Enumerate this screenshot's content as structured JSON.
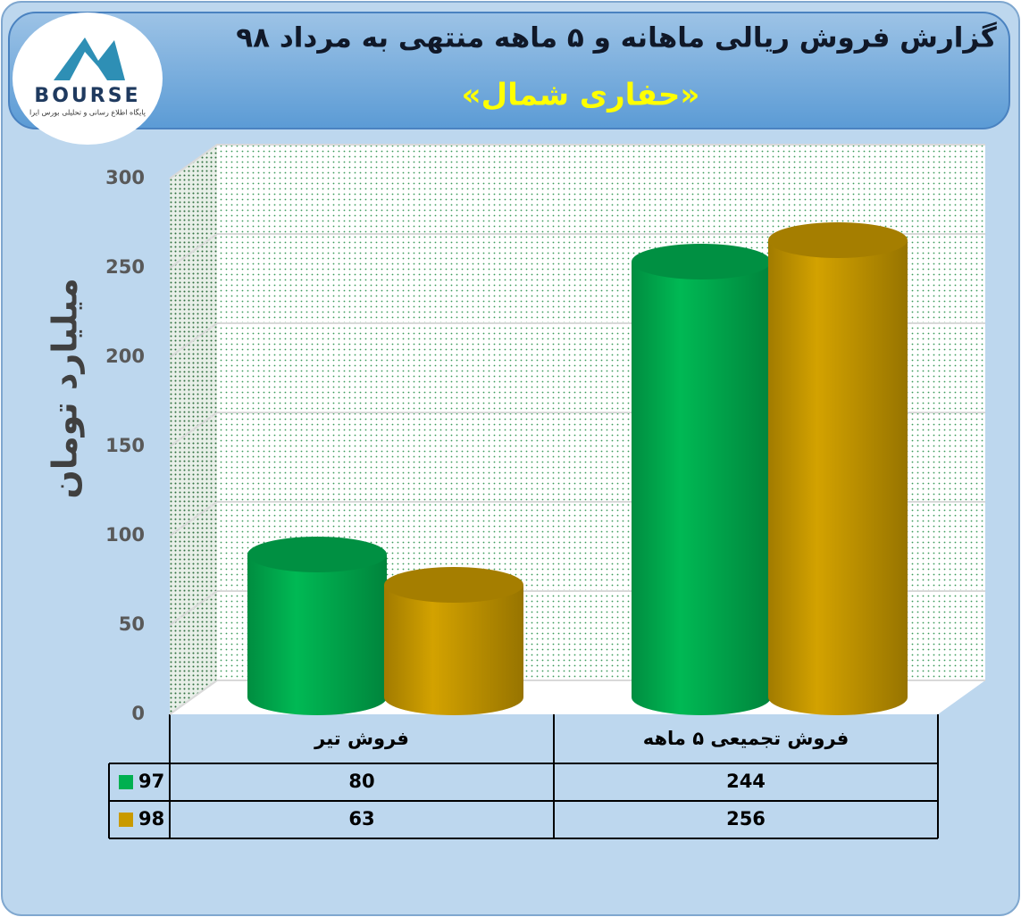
{
  "chart_data": {
    "type": "bar",
    "title": "گزارش فروش ریالی ماهانه و ۵ ماهه منتهی به مرداد ۹۸",
    "subtitle": "«حفاری شمال»",
    "logo": {
      "text": "BOURSE",
      "tagline": "پایگاه اطلاع رسانی و تحلیلی بورس ایرا"
    },
    "y_label": "میلیارد تومان",
    "categories": [
      "فروش تیر",
      "فروش تجمیعی ۵ ماهه"
    ],
    "series": [
      {
        "name": "97",
        "color": "#00b050",
        "values": [
          80,
          244
        ]
      },
      {
        "name": "98",
        "color": "#c99a00",
        "values": [
          63,
          256
        ]
      }
    ],
    "ylim": [
      0,
      300
    ],
    "yticks": [
      0,
      50,
      100,
      150,
      200,
      250,
      300
    ],
    "grid": true
  }
}
